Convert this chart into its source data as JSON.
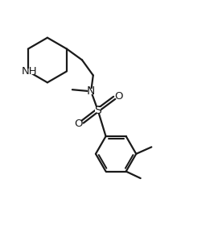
{
  "background_color": "#ffffff",
  "line_color": "#1a1a1a",
  "line_width": 1.6,
  "font_size": 9.5,
  "figsize": [
    2.66,
    2.84
  ],
  "dpi": 100,
  "xlim": [
    0,
    10
  ],
  "ylim": [
    0,
    10
  ]
}
